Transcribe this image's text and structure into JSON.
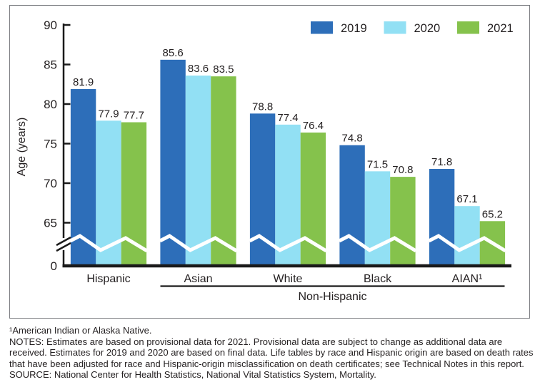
{
  "chart_data": {
    "type": "bar",
    "title": "",
    "ylabel": "Age (years)",
    "categories": [
      "Hispanic",
      "Asian",
      "White",
      "Black",
      "AIAN¹"
    ],
    "category_group": {
      "label": "Non-Hispanic",
      "members": [
        "Asian",
        "White",
        "Black",
        "AIAN¹"
      ]
    },
    "series": [
      {
        "name": "2019",
        "color": "#2d6eb9",
        "values": [
          81.9,
          85.6,
          78.8,
          74.8,
          71.8
        ]
      },
      {
        "name": "2020",
        "color": "#92e0f4",
        "values": [
          77.9,
          83.6,
          77.4,
          71.5,
          67.1
        ]
      },
      {
        "name": "2021",
        "color": "#85c24c",
        "values": [
          77.7,
          83.5,
          76.4,
          70.8,
          65.2
        ]
      }
    ],
    "y_ticks": [
      90,
      85,
      80,
      75,
      70,
      65,
      0
    ],
    "ylim": [
      0,
      90
    ],
    "display_range": [
      65,
      90
    ],
    "y_axis_break": true,
    "grid": false,
    "value_labels": true,
    "legend_position": "top-right"
  },
  "footnotes": {
    "aian_definition": "¹American Indian or Alaska Native.",
    "notes": "NOTES: Estimates are based on provisional data for 2021. Provisional data are subject to change as additional data are received. Estimates for 2019 and 2020 are based on final data. Life tables by race and Hispanic origin are based on death rates that have been adjusted for race and Hispanic-origin misclassification on death certificates; see Technical Notes in this report.",
    "source": "SOURCE: National Center for Health Statistics, National Vital Statistics System, Mortality."
  },
  "colors": {
    "text": "#231f20",
    "axis": "#1a1a1a",
    "break_line": "#ffffff",
    "frame_border": "#7c7e82",
    "background": "#ffffff"
  }
}
